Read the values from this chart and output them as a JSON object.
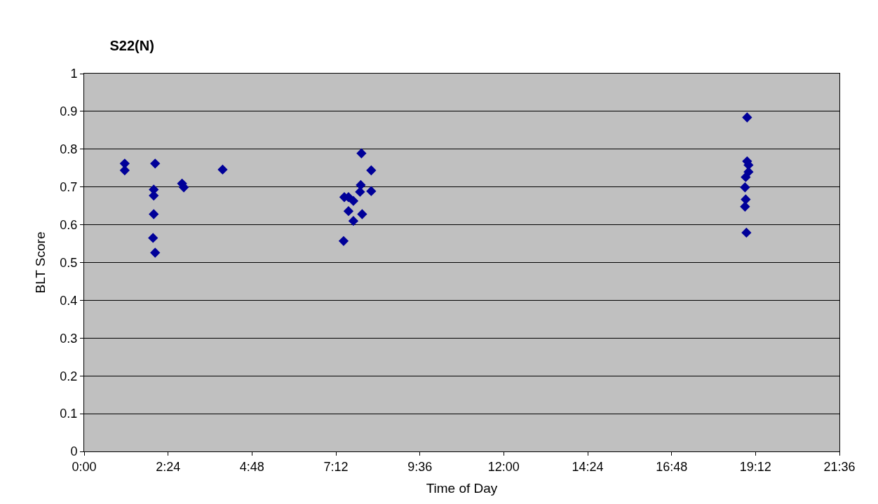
{
  "chart_data": {
    "type": "scatter",
    "title": "S22(N)",
    "xlabel": "Time of Day",
    "ylabel": "BLT Score",
    "x": [
      1.16,
      1.16,
      2.03,
      1.99,
      1.99,
      1.99,
      1.97,
      2.03,
      2.8,
      2.85,
      3.96,
      7.93,
      8.21,
      7.91,
      7.89,
      8.21,
      7.44,
      7.56,
      7.7,
      7.56,
      7.95,
      7.7,
      7.42,
      18.96,
      18.96,
      19,
      19,
      18.92,
      18.9,
      18.92,
      18.9,
      18.94
    ],
    "series": [
      {
        "color": "#000099",
        "values": [
          0.762,
          0.744,
          0.762,
          0.693,
          0.677,
          0.628,
          0.565,
          0.526,
          0.709,
          0.699,
          0.746,
          0.789,
          0.744,
          0.705,
          0.687,
          0.689,
          0.673,
          0.673,
          0.663,
          0.636,
          0.628,
          0.61,
          0.557,
          0.884,
          0.768,
          0.758,
          0.74,
          0.726,
          0.699,
          0.667,
          0.648,
          0.579
        ]
      }
    ],
    "xlim": [
      0,
      21.6
    ],
    "xticks": [
      {
        "value": 0,
        "label": "0:00"
      },
      {
        "value": 2.4,
        "label": "2:24"
      },
      {
        "value": 4.8,
        "label": "4:48"
      },
      {
        "value": 7.2,
        "label": "7:12"
      },
      {
        "value": 9.6,
        "label": "9:36"
      },
      {
        "value": 12,
        "label": "12:00"
      },
      {
        "value": 14.4,
        "label": "14:24"
      },
      {
        "value": 16.8,
        "label": "16:48"
      },
      {
        "value": 19.2,
        "label": "19:12"
      },
      {
        "value": 21.6,
        "label": "21:36"
      }
    ],
    "ylim": [
      0,
      1
    ],
    "yticks": [
      0,
      0.1,
      0.2,
      0.3,
      0.4,
      0.5,
      0.6,
      0.7,
      0.8,
      0.9,
      1
    ],
    "grid": "y",
    "marker": "diamond",
    "legend": false
  }
}
